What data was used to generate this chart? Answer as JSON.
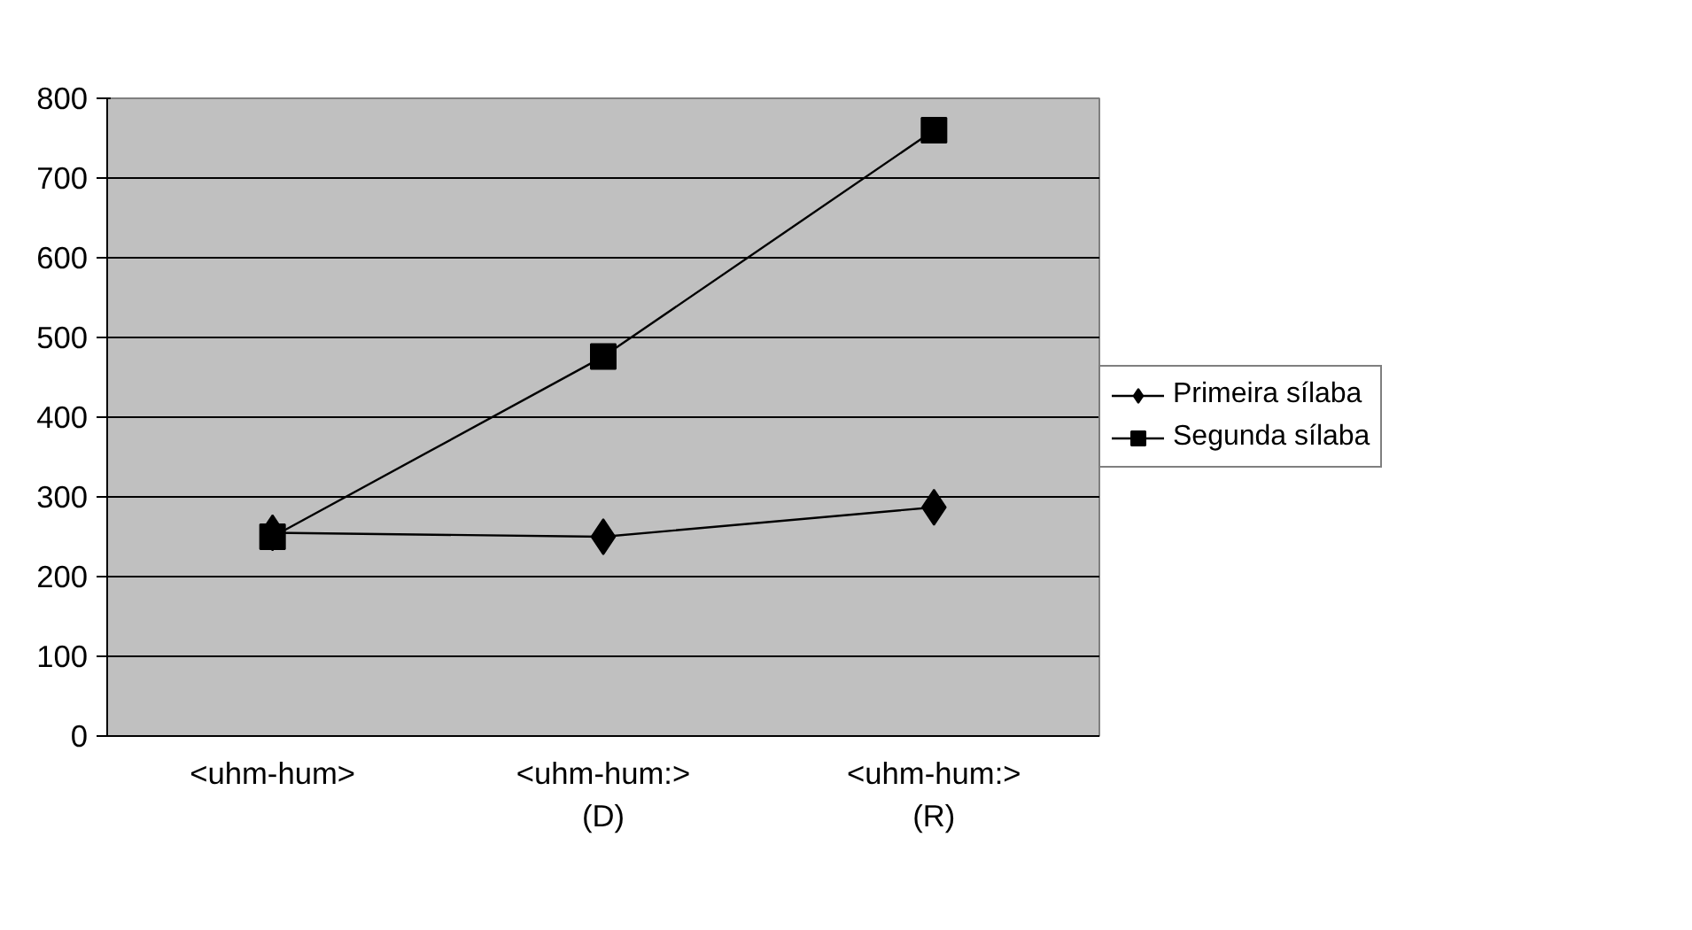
{
  "chart_data": {
    "type": "line",
    "categories": [
      "<uhm-hum>",
      "<uhm-hum:>\n(D)",
      "<uhm-hum:>\n(R)"
    ],
    "series": [
      {
        "name": "Primeira sílaba",
        "color": "#000000",
        "marker": "diamond",
        "values": [
          255,
          250,
          287
        ]
      },
      {
        "name": "Segunda sílaba",
        "color": "#000000",
        "marker": "square",
        "values": [
          250,
          476,
          760
        ]
      }
    ],
    "ylim": [
      0,
      800
    ],
    "yticks": [
      0,
      100,
      200,
      300,
      400,
      500,
      600,
      700,
      800
    ],
    "grid": "y",
    "legend": "right"
  }
}
